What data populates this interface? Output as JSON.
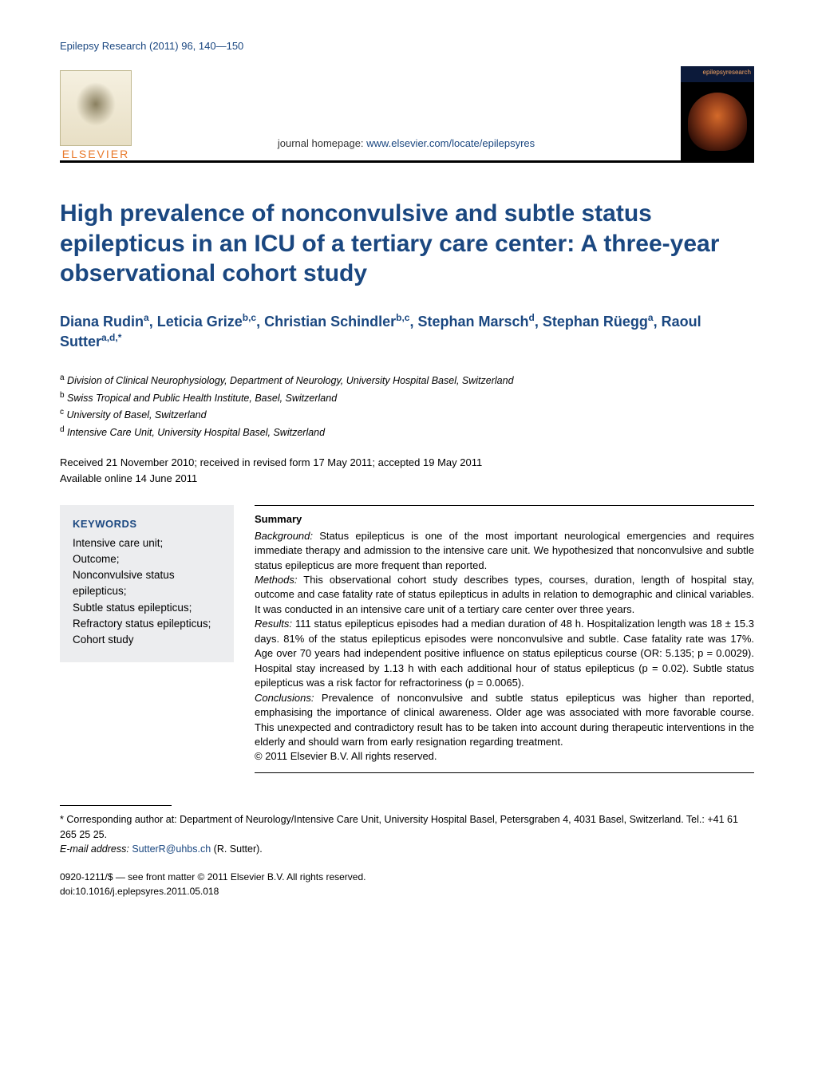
{
  "running_head": "Epilepsy Research (2011) 96, 140—150",
  "header": {
    "publisher_word": "ELSEVIER",
    "homepage_label": "journal homepage: ",
    "homepage_url": "www.elsevier.com/locate/epilepsyres",
    "cover_label": "epilepsyresearch"
  },
  "title": "High prevalence of nonconvulsive and subtle status epilepticus in an ICU of a tertiary care center: A three-year observational cohort study",
  "authors_html": "Diana Rudin<sup>a</sup>, Leticia Grize<sup>b,c</sup>, Christian Schindler<sup>b,c</sup>, Stephan Marsch<sup>d</sup>, Stephan Rüegg<sup>a</sup>, Raoul Sutter<sup>a,d,*</sup>",
  "affiliations": [
    {
      "sup": "a",
      "text": "Division of Clinical Neurophysiology, Department of Neurology, University Hospital Basel, Switzerland"
    },
    {
      "sup": "b",
      "text": "Swiss Tropical and Public Health Institute, Basel, Switzerland"
    },
    {
      "sup": "c",
      "text": "University of Basel, Switzerland"
    },
    {
      "sup": "d",
      "text": "Intensive Care Unit, University Hospital Basel, Switzerland"
    }
  ],
  "dates": {
    "line1": "Received 21 November 2010; received in revised form 17 May 2011; accepted 19 May 2011",
    "line2": "Available online 14 June 2011"
  },
  "keywords": {
    "title": "KEYWORDS",
    "items": [
      "Intensive care unit;",
      "Outcome;",
      "Nonconvulsive status epilepticus;",
      "Subtle status epilepticus;",
      "Refractory status epilepticus;",
      "Cohort study"
    ]
  },
  "summary": {
    "title": "Summary",
    "sections": [
      {
        "label": "Background:",
        "text": " Status epilepticus is one of the most important neurological emergencies and requires immediate therapy and admission to the intensive care unit. We hypothesized that nonconvulsive and subtle status epilepticus are more frequent than reported."
      },
      {
        "label": "Methods:",
        "text": " This observational cohort study describes types, courses, duration, length of hospital stay, outcome and case fatality rate of status epilepticus in adults in relation to demographic and clinical variables. It was conducted in an intensive care unit of a tertiary care center over three years."
      },
      {
        "label": "Results:",
        "text": " 111 status epilepticus episodes had a median duration of 48 h. Hospitalization length was 18 ± 15.3 days. 81% of the status epilepticus episodes were nonconvulsive and subtle. Case fatality rate was 17%. Age over 70 years had independent positive influence on status epilepticus course (OR: 5.135; p = 0.0029). Hospital stay increased by 1.13 h with each additional hour of status epilepticus (p = 0.02). Subtle status epilepticus was a risk factor for refractoriness (p = 0.0065)."
      },
      {
        "label": "Conclusions:",
        "text": " Prevalence of nonconvulsive and subtle status epilepticus was higher than reported, emphasising the importance of clinical awareness. Older age was associated with more favorable course. This unexpected and contradictory result has to be taken into account during therapeutic interventions in the elderly and should warn from early resignation regarding treatment."
      }
    ],
    "copyright": "© 2011 Elsevier B.V. All rights reserved."
  },
  "corresponding": {
    "marker": "*",
    "text": "Corresponding author at: Department of Neurology/Intensive Care Unit, University Hospital Basel, Petersgraben 4, 4031 Basel, Switzerland. Tel.: +41 61 265 25 25.",
    "email_label": "E-mail address:",
    "email": "SutterR@uhbs.ch",
    "email_suffix": " (R. Sutter)."
  },
  "footer": {
    "line1": "0920-1211/$ — see front matter © 2011 Elsevier B.V. All rights reserved.",
    "line2": "doi:10.1016/j.eplepsyres.2011.05.018"
  },
  "colors": {
    "brand_blue": "#1a4780",
    "elsevier_orange": "#e8792b",
    "keywords_bg": "#ecedef",
    "text": "#000000",
    "link": "#1a4780"
  },
  "typography": {
    "title_fontsize": 30,
    "authors_fontsize": 18,
    "body_fontsize": 13,
    "small_fontsize": 12.5
  }
}
